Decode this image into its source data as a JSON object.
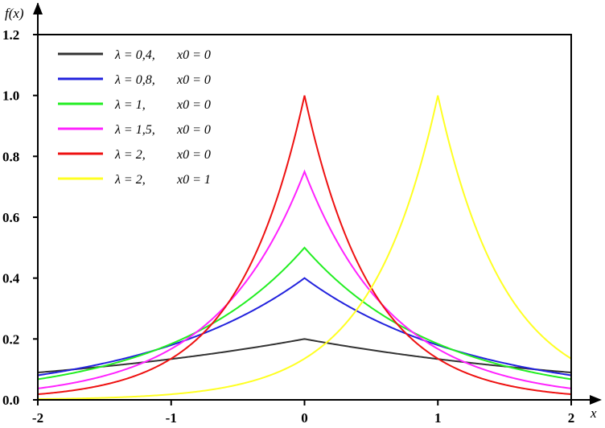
{
  "chart_data": {
    "type": "line",
    "title": "",
    "xlabel": "x",
    "ylabel": "f(x)",
    "xlim": [
      -2,
      2
    ],
    "ylim": [
      0,
      1.2
    ],
    "xticks": [
      {
        "value": -2,
        "label": "-2"
      },
      {
        "value": -1,
        "label": "-1"
      },
      {
        "value": 0,
        "label": "0"
      },
      {
        "value": 1,
        "label": "1"
      },
      {
        "value": 2,
        "label": "2"
      }
    ],
    "yticks": [
      {
        "value": 0,
        "label": "0.0"
      },
      {
        "value": 0.2,
        "label": "0.2"
      },
      {
        "value": 0.4,
        "label": "0.4"
      },
      {
        "value": 0.6,
        "label": "0.6"
      },
      {
        "value": 0.8,
        "label": "0.8"
      },
      {
        "value": 1.0,
        "label": "1.0"
      },
      {
        "value": 1.2,
        "label": "1.2"
      }
    ],
    "grid": false,
    "legend_position": "top-left",
    "series": [
      {
        "name": "λ = 0,4,   x0 = 0",
        "lambda_label": "λ = 0,4,",
        "x0_label": "x0 = 0",
        "lambda": 0.4,
        "x0": 0,
        "color": "#333333"
      },
      {
        "name": "λ = 0,8,   x0 = 0",
        "lambda_label": "λ = 0,8,",
        "x0_label": "x0 = 0",
        "lambda": 0.8,
        "x0": 0,
        "color": "#2222dd"
      },
      {
        "name": "λ = 1,       x0 = 0",
        "lambda_label": "λ = 1,",
        "x0_label": "x0 = 0",
        "lambda": 1,
        "x0": 0,
        "color": "#22ee22"
      },
      {
        "name": "λ = 1,5,   x0 = 0",
        "lambda_label": "λ = 1,5,",
        "x0_label": "x0 = 0",
        "lambda": 1.5,
        "x0": 0,
        "color": "#ff22ff"
      },
      {
        "name": "λ = 2,     x0 = 0",
        "lambda_label": "λ = 2,",
        "x0_label": "x0 = 0",
        "lambda": 2,
        "x0": 0,
        "color": "#ee1111"
      },
      {
        "name": "λ = 2,     x0 = 1",
        "lambda_label": "λ = 2,",
        "x0_label": "x0 = 1",
        "lambda": 2,
        "x0": 1,
        "color": "#ffff22"
      }
    ]
  }
}
